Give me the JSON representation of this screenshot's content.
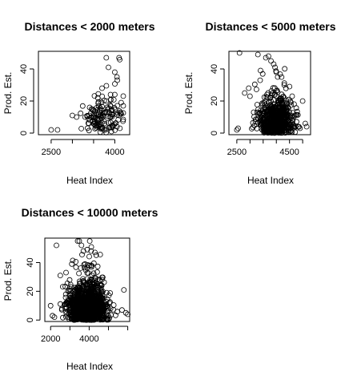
{
  "chart_data": [
    {
      "type": "scatter",
      "title": "Distances < 2000 meters",
      "xlabel": "Heat Index",
      "ylabel": "Prod. Est.",
      "xlim": [
        2200,
        4350
      ],
      "ylim": [
        -1,
        51
      ],
      "xticks": [
        2500,
        3000,
        3500,
        4000
      ],
      "xtick_labels": [
        "2500",
        "",
        "",
        "4000"
      ],
      "yticks": [
        0,
        20,
        40
      ],
      "ytick_labels": [
        "0",
        "20",
        "40"
      ],
      "n_points": 130,
      "center": [
        3750,
        9
      ],
      "spread": [
        240,
        6
      ],
      "x_range": [
        2500,
        4200
      ],
      "y_max": 48,
      "seed": 11,
      "anchors": [
        [
          2500,
          2
        ],
        [
          2650,
          2
        ],
        [
          3000,
          11
        ],
        [
          3100,
          10
        ],
        [
          3300,
          10
        ],
        [
          3400,
          11
        ],
        [
          3450,
          15
        ],
        [
          3500,
          14
        ],
        [
          3600,
          22
        ],
        [
          3700,
          28
        ],
        [
          3800,
          20
        ],
        [
          3800,
          47
        ],
        [
          3850,
          41
        ],
        [
          4000,
          38
        ],
        [
          4050,
          35
        ],
        [
          4060,
          33
        ],
        [
          4100,
          47
        ],
        [
          4150,
          19
        ],
        [
          4200,
          17
        ],
        [
          4100,
          11
        ],
        [
          4150,
          12
        ],
        [
          4000,
          24
        ],
        [
          3900,
          24
        ],
        [
          4050,
          4
        ],
        [
          4120,
          3
        ],
        [
          3950,
          5
        ]
      ]
    },
    {
      "type": "scatter",
      "title": "Distances < 5000 meters",
      "xlabel": "Heat Index",
      "ylabel": "Prod. Est.",
      "xlim": [
        2200,
        5300
      ],
      "ylim": [
        -1,
        51
      ],
      "xticks": [
        2500,
        3000,
        3500,
        4000,
        4500,
        5000
      ],
      "xtick_labels": [
        "2500",
        "",
        "",
        "",
        "4500",
        ""
      ],
      "yticks": [
        0,
        20,
        40
      ],
      "ytick_labels": [
        "0",
        "20",
        "40"
      ],
      "n_points": 650,
      "center": [
        3950,
        7
      ],
      "spread": [
        330,
        6
      ],
      "x_range": [
        2500,
        5200
      ],
      "y_max": 50,
      "seed": 23,
      "anchors": [
        [
          2600,
          50
        ],
        [
          3300,
          49
        ],
        [
          3600,
          47
        ],
        [
          3700,
          48
        ],
        [
          3800,
          45
        ],
        [
          3900,
          43
        ],
        [
          3950,
          41
        ],
        [
          4000,
          38
        ],
        [
          4050,
          35
        ],
        [
          2800,
          25
        ],
        [
          2950,
          28
        ],
        [
          3000,
          23
        ],
        [
          5000,
          20
        ],
        [
          5100,
          6
        ],
        [
          5150,
          4
        ],
        [
          4900,
          3
        ],
        [
          2500,
          2
        ],
        [
          2550,
          3
        ],
        [
          3400,
          39
        ],
        [
          4300,
          30
        ],
        [
          4500,
          29
        ],
        [
          4600,
          23
        ]
      ]
    },
    {
      "type": "scatter",
      "title": "Distances < 10000 meters",
      "xlabel": "Heat Index",
      "ylabel": "Prod. Est.",
      "xlim": [
        1700,
        6100
      ],
      "ylim": [
        -1,
        57
      ],
      "xticks": [
        2000,
        3000,
        4000,
        5000,
        6000
      ],
      "xtick_labels": [
        "2000",
        "",
        "4000",
        "",
        ""
      ],
      "yticks": [
        0,
        20,
        40
      ],
      "ytick_labels": [
        "0",
        "20",
        "40"
      ],
      "n_points": 1500,
      "center": [
        3900,
        8
      ],
      "spread": [
        450,
        6.5
      ],
      "x_range": [
        2000,
        6000
      ],
      "y_max": 55,
      "seed": 37,
      "anchors": [
        [
          2300,
          52
        ],
        [
          3400,
          55
        ],
        [
          3600,
          52
        ],
        [
          3700,
          48
        ],
        [
          3900,
          49
        ],
        [
          4100,
          48
        ],
        [
          4300,
          47
        ],
        [
          5800,
          21
        ],
        [
          5900,
          5
        ],
        [
          6000,
          4
        ],
        [
          5700,
          7
        ],
        [
          2000,
          10
        ],
        [
          2100,
          3
        ],
        [
          2200,
          2
        ],
        [
          2500,
          31
        ],
        [
          2800,
          33
        ],
        [
          3100,
          39
        ]
      ]
    }
  ]
}
